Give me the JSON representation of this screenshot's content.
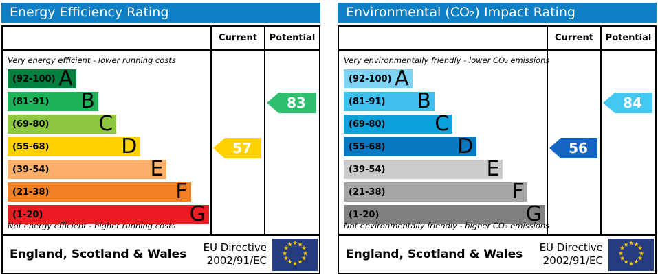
{
  "theme": {
    "header_bg": "#0f80c5",
    "border_color": "#000000",
    "flag_bg": "#253c80",
    "star_color": "#ffcc00",
    "star_glyph": "★",
    "arrow_text_color": "#ffffff"
  },
  "chart_data": [
    {
      "type": "bar",
      "title": "Energy Efficiency Rating",
      "categories": [
        "A (92-100)",
        "B (81-91)",
        "C (69-80)",
        "D (55-68)",
        "E (39-54)",
        "F (21-38)",
        "G (1-20)"
      ],
      "series": [
        {
          "name": "Current",
          "values": [
            57
          ],
          "band": "D"
        },
        {
          "name": "Potential",
          "values": [
            83
          ],
          "band": "B"
        }
      ],
      "xlabel": "",
      "ylabel": "",
      "annotations": [
        "Very energy efficient - lower running costs",
        "Not energy efficient - higher running costs",
        "England, Scotland & Wales",
        "EU Directive 2002/91/EC"
      ]
    },
    {
      "type": "bar",
      "title": "Environmental (CO₂) Impact Rating",
      "categories": [
        "A (92-100)",
        "B (81-91)",
        "C (69-80)",
        "D (55-68)",
        "E (39-54)",
        "F (21-38)",
        "G (1-20)"
      ],
      "series": [
        {
          "name": "Current",
          "values": [
            56
          ],
          "band": "D"
        },
        {
          "name": "Potential",
          "values": [
            84
          ],
          "band": "B"
        }
      ],
      "xlabel": "",
      "ylabel": "",
      "annotations": [
        "Very environmentally friendly - lower CO₂ emissions",
        "Not environmentally friendly - higher CO₂ emissions",
        "England, Scotland & Wales",
        "EU Directive 2002/91/EC"
      ]
    }
  ],
  "panels": [
    {
      "title": "Energy Efficiency Rating",
      "columns": {
        "current": "Current",
        "potential": "Potential"
      },
      "top_note": "Very energy efficient - lower running costs",
      "bottom_note": "Not energy efficient - higher running costs",
      "bands": [
        {
          "range": "(92-100)",
          "letter": "A",
          "color": "#008040",
          "width_pct": 34
        },
        {
          "range": "(81-91)",
          "letter": "B",
          "color": "#1cb35a",
          "width_pct": 45
        },
        {
          "range": "(69-80)",
          "letter": "C",
          "color": "#8dc63f",
          "width_pct": 54
        },
        {
          "range": "(55-68)",
          "letter": "D",
          "color": "#ffd200",
          "width_pct": 66
        },
        {
          "range": "(39-54)",
          "letter": "E",
          "color": "#fbaf68",
          "width_pct": 79
        },
        {
          "range": "(21-38)",
          "letter": "F",
          "color": "#f08023",
          "width_pct": 91
        },
        {
          "range": "(1-20)",
          "letter": "G",
          "color": "#ed1c24",
          "width_pct": 100
        }
      ],
      "current": {
        "value": "57",
        "color": "#ffd200",
        "row_index": 3
      },
      "potential": {
        "value": "83",
        "color": "#2fbe6e",
        "row_index": 1
      },
      "footer": {
        "region": "England, Scotland & Wales",
        "directive_line1": "EU Directive",
        "directive_line2": "2002/91/EC"
      }
    },
    {
      "title": "Environmental (CO₂) Impact Rating",
      "columns": {
        "current": "Current",
        "potential": "Potential"
      },
      "top_note": "Very environmentally friendly - lower CO₂ emissions",
      "bottom_note": "Not environmentally friendly - higher CO₂ emissions",
      "bands": [
        {
          "range": "(92-100)",
          "letter": "A",
          "color": "#7ed2f3",
          "width_pct": 34
        },
        {
          "range": "(81-91)",
          "letter": "B",
          "color": "#3fc0ef",
          "width_pct": 45
        },
        {
          "range": "(69-80)",
          "letter": "C",
          "color": "#0da1dc",
          "width_pct": 54
        },
        {
          "range": "(55-68)",
          "letter": "D",
          "color": "#0679c2",
          "width_pct": 66
        },
        {
          "range": "(39-54)",
          "letter": "E",
          "color": "#cacbca",
          "width_pct": 79
        },
        {
          "range": "(21-38)",
          "letter": "F",
          "color": "#a4a6a8",
          "width_pct": 91
        },
        {
          "range": "(1-20)",
          "letter": "G",
          "color": "#7e8082",
          "width_pct": 100
        }
      ],
      "current": {
        "value": "56",
        "color": "#1565c5",
        "row_index": 3
      },
      "potential": {
        "value": "84",
        "color": "#44c8f2",
        "row_index": 1
      },
      "footer": {
        "region": "England, Scotland & Wales",
        "directive_line1": "EU Directive",
        "directive_line2": "2002/91/EC"
      }
    }
  ]
}
